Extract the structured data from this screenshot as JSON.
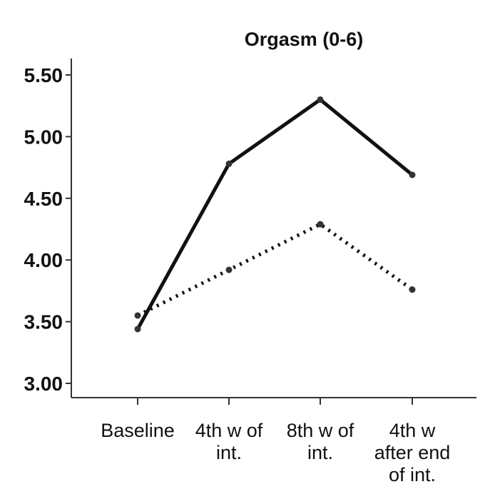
{
  "chart_data": {
    "type": "line",
    "title": "Orgasm (0-6)",
    "xlabel": "",
    "ylabel": "",
    "categories": [
      [
        "Baseline"
      ],
      [
        "4th w of",
        "int."
      ],
      [
        "8th w of",
        "int."
      ],
      [
        "4th w",
        "after end",
        "of int."
      ]
    ],
    "series": [
      {
        "style": "solid",
        "color": "#111111",
        "values": [
          3.44,
          4.78,
          5.3,
          4.69
        ]
      },
      {
        "style": "dotted",
        "color": "#111111",
        "values": [
          3.55,
          3.92,
          4.29,
          3.76
        ]
      }
    ],
    "yticks": [
      "3.00",
      "3.50",
      "4.00",
      "4.50",
      "5.00",
      "5.50"
    ],
    "ylim": [
      2.95,
      5.65
    ],
    "grid": false,
    "legend": "none"
  }
}
